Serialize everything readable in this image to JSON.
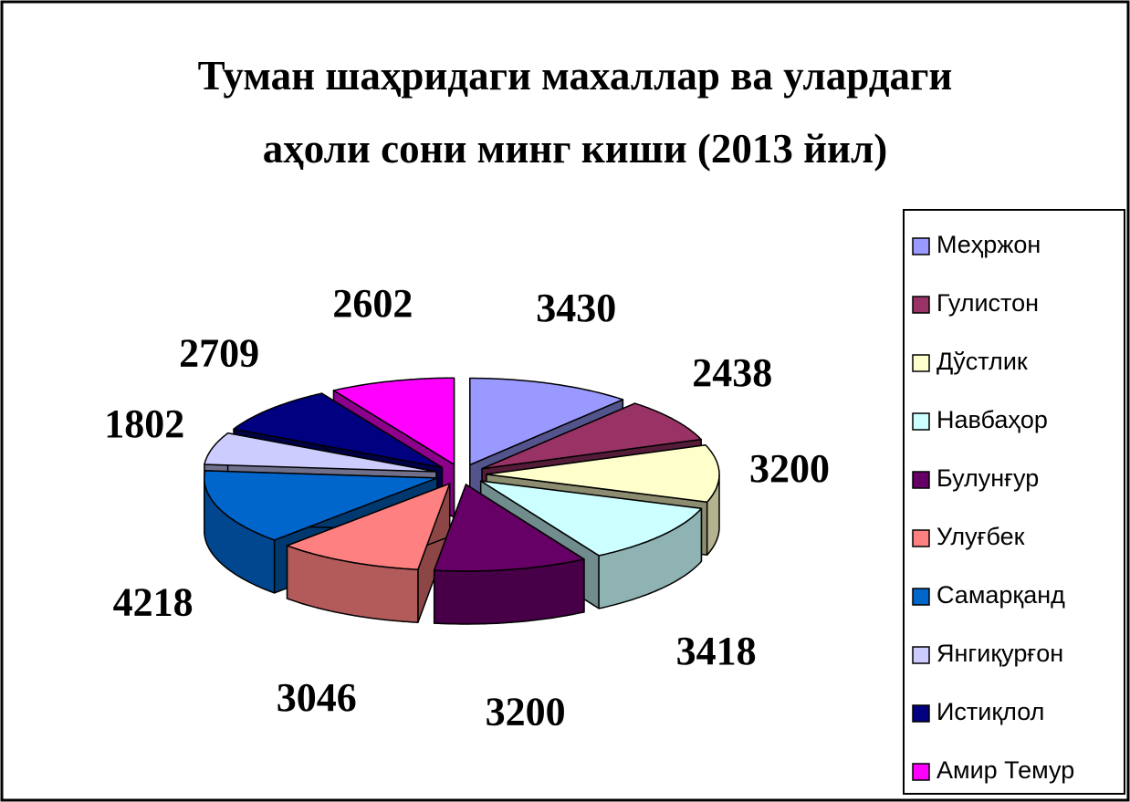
{
  "chart_data": {
    "type": "pie3d",
    "title": [
      "Туман шаҳридаги махаллар ва улардаги",
      "аҳоли сони  минг киши (2013 йил)"
    ],
    "categories": [
      "Меҳржон",
      "Гулистон",
      "Дўстлик",
      "Навбаҳор",
      "Булунғур",
      "Улуғбек",
      "Самарқанд",
      "Янгиқурғон",
      "Истиқлол",
      "Амир Темур"
    ],
    "values": [
      3430,
      2438,
      3200,
      3418,
      3200,
      3046,
      4218,
      1802,
      2709,
      2602
    ],
    "colors": [
      "#9999ff",
      "#993366",
      "#ffffcc",
      "#ccffff",
      "#660066",
      "#ff8080",
      "#0066cc",
      "#ccccff",
      "#000080",
      "#ff00ff"
    ],
    "legend": "right"
  }
}
